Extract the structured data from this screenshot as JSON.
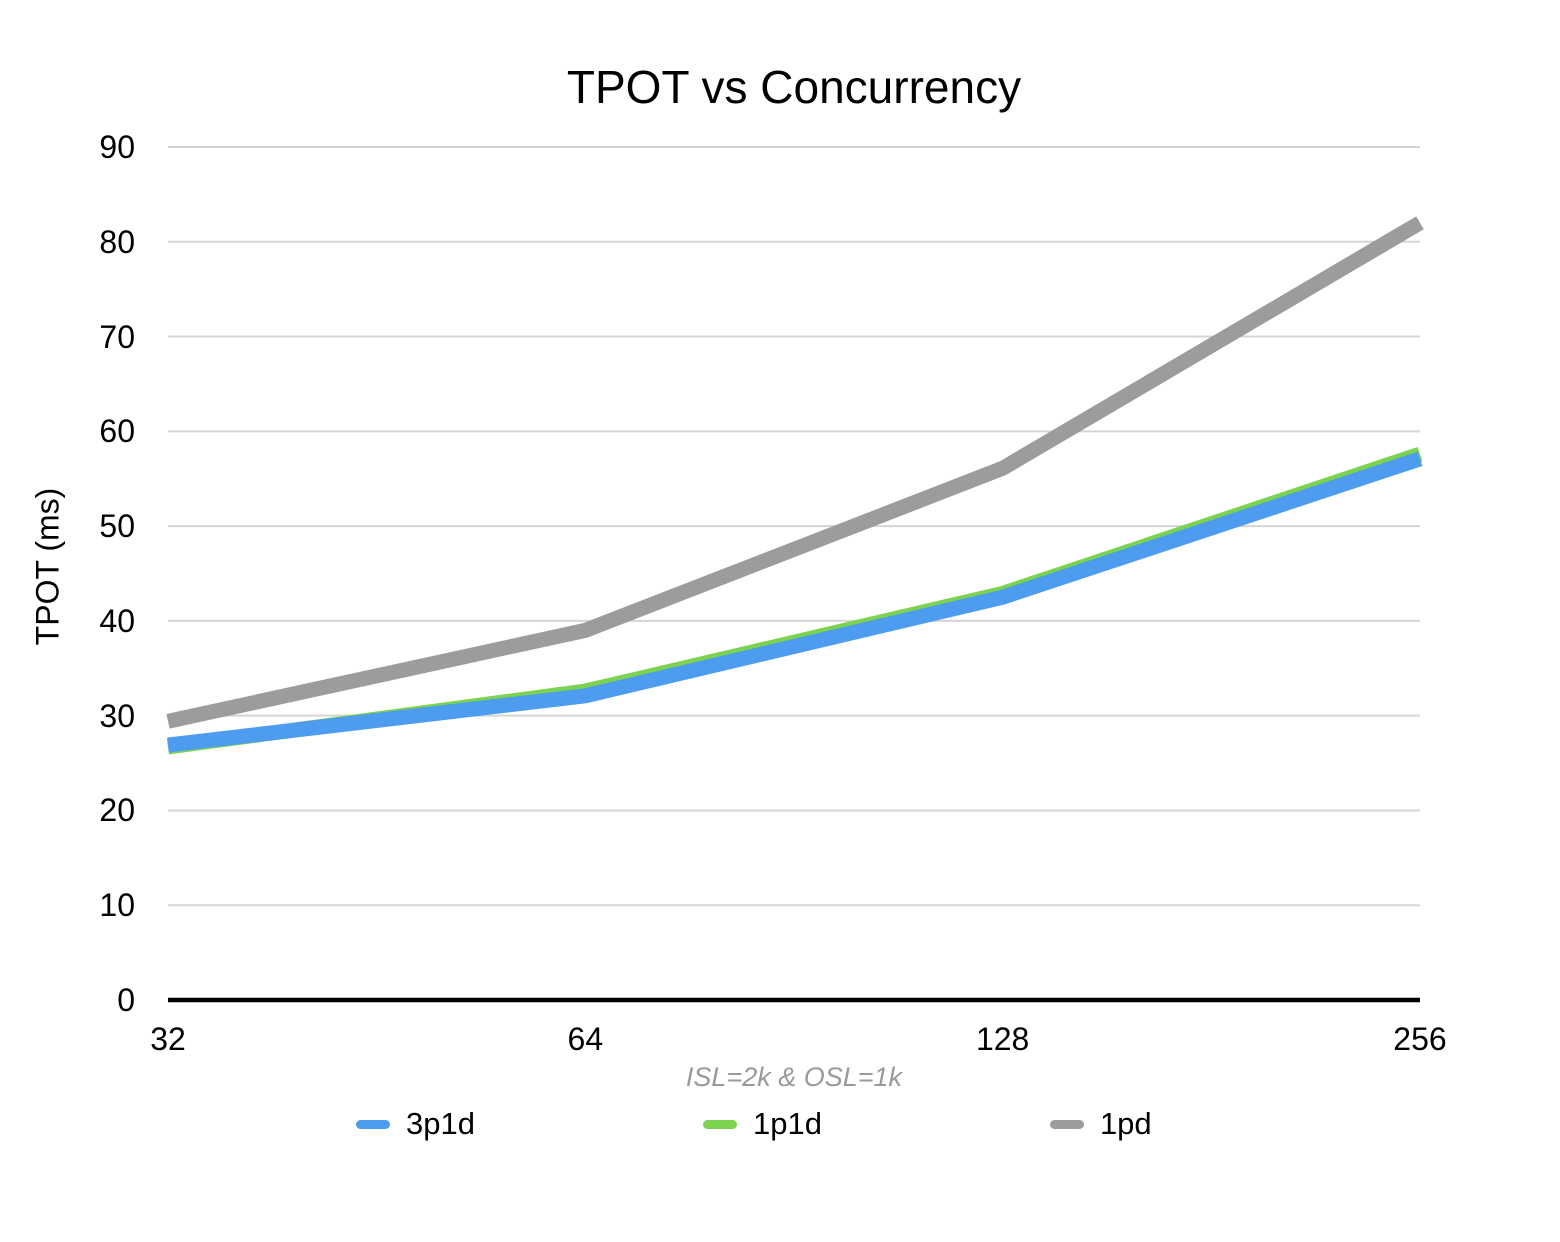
{
  "title": "TPOT vs Concurrency",
  "chart_data": {
    "type": "line",
    "title": "TPOT vs Concurrency",
    "x_categories": [
      "32",
      "64",
      "128",
      "256"
    ],
    "xlabel": "ISL=2k & OSL=1k",
    "ylabel": "TPOT (ms)",
    "ylim": [
      0,
      90
    ],
    "y_ticks": [
      0,
      10,
      20,
      30,
      40,
      50,
      60,
      70,
      80,
      90
    ],
    "grid": "horizontal-only",
    "legend_position": "bottom",
    "x_scale_note": "categories equally spaced (powers of two)",
    "series": [
      {
        "name": "3p1d",
        "color": "#4D9CF0",
        "values": [
          26.9,
          32.1,
          42.5,
          57.1
        ]
      },
      {
        "name": "1p1d",
        "color": "#7CD34F",
        "values": [
          26.7,
          32.6,
          42.9,
          57.6
        ]
      },
      {
        "name": "1pd",
        "color": "#9C9C9C",
        "values": [
          29.4,
          39.0,
          56.1,
          82.0
        ]
      }
    ]
  },
  "colors": {
    "background": "#FFFFFF",
    "text": "#000000",
    "gridline": "#D5D5D5",
    "axis_line": "#000000",
    "subtitle_text": "#9A9A9A"
  }
}
